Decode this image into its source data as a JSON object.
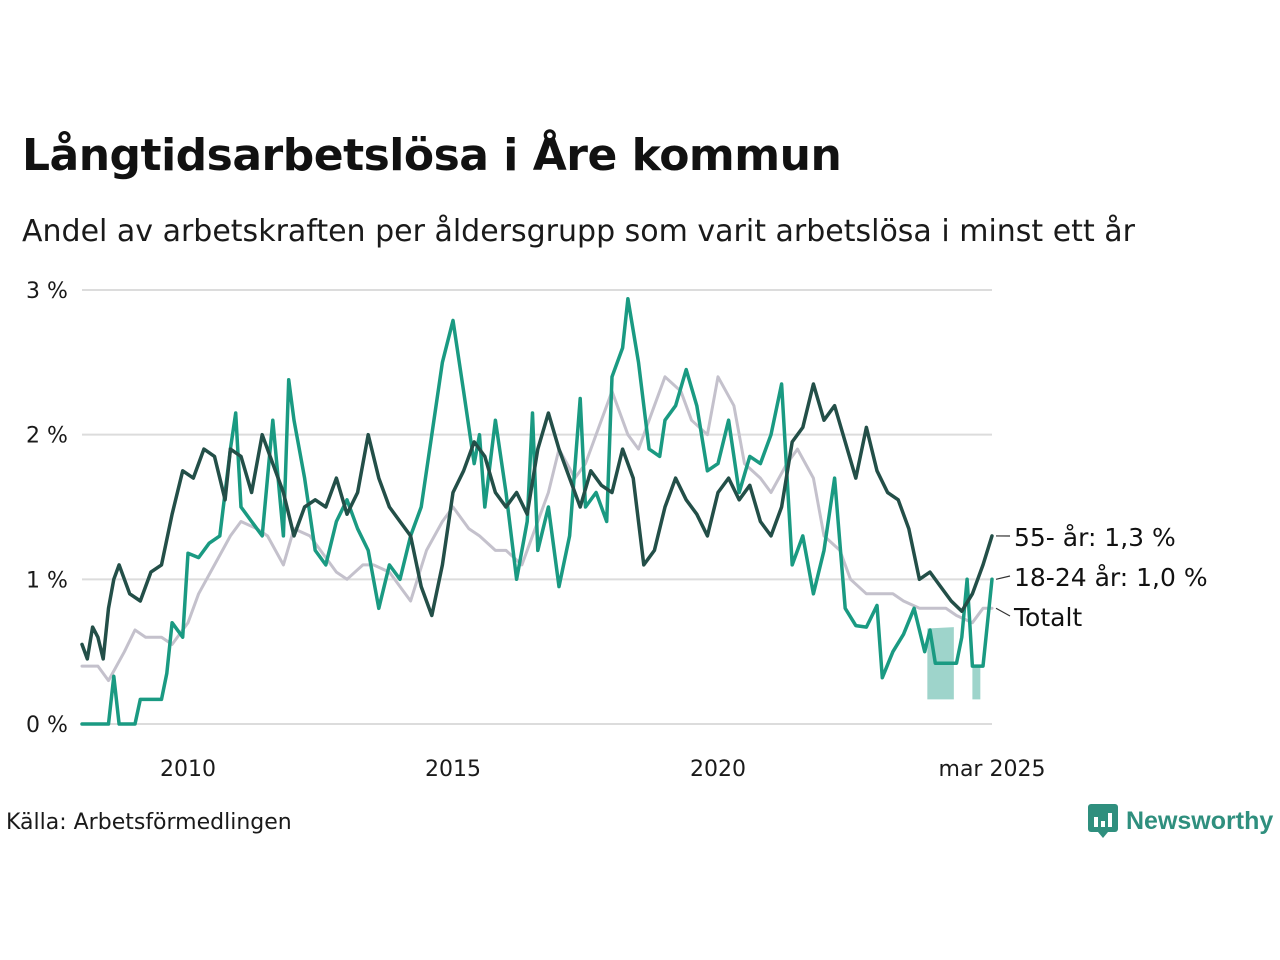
{
  "title": "Långtidsarbetslösa i Åre kommun",
  "subtitle": "Andel av arbetskraften per åldersgrupp som varit arbetslösa i minst ett år",
  "source": "Källa: Arbetsförmedlingen",
  "brand": {
    "name": "Newsworthy",
    "icon": "newsworthy-chart-icon",
    "color": "#2f8f7e"
  },
  "chart_data": {
    "type": "line",
    "y_ticks": [
      "0 %",
      "1 %",
      "2 %",
      "3 %"
    ],
    "x_ticks": [
      "2010",
      "2015",
      "2020",
      "mar 2025"
    ],
    "xlim": [
      2008.0,
      2025.17
    ],
    "ylim": [
      0,
      3
    ],
    "grid": "horizontal",
    "series": [
      {
        "name": "Totalt",
        "label": "Totalt",
        "color": "#c4c1cc",
        "points": [
          [
            2008.0,
            0.4
          ],
          [
            2008.3,
            0.4
          ],
          [
            2008.5,
            0.3
          ],
          [
            2008.8,
            0.5
          ],
          [
            2009.0,
            0.65
          ],
          [
            2009.2,
            0.6
          ],
          [
            2009.5,
            0.6
          ],
          [
            2009.7,
            0.55
          ],
          [
            2010.0,
            0.7
          ],
          [
            2010.2,
            0.9
          ],
          [
            2010.5,
            1.1
          ],
          [
            2010.8,
            1.3
          ],
          [
            2011.0,
            1.4
          ],
          [
            2011.3,
            1.35
          ],
          [
            2011.5,
            1.3
          ],
          [
            2011.8,
            1.1
          ],
          [
            2012.0,
            1.35
          ],
          [
            2012.3,
            1.3
          ],
          [
            2012.5,
            1.2
          ],
          [
            2012.8,
            1.05
          ],
          [
            2013.0,
            1.0
          ],
          [
            2013.3,
            1.1
          ],
          [
            2013.5,
            1.1
          ],
          [
            2013.8,
            1.05
          ],
          [
            2014.0,
            0.95
          ],
          [
            2014.2,
            0.85
          ],
          [
            2014.5,
            1.2
          ],
          [
            2014.8,
            1.4
          ],
          [
            2015.0,
            1.5
          ],
          [
            2015.3,
            1.35
          ],
          [
            2015.5,
            1.3
          ],
          [
            2015.8,
            1.2
          ],
          [
            2016.0,
            1.2
          ],
          [
            2016.3,
            1.1
          ],
          [
            2016.5,
            1.3
          ],
          [
            2016.8,
            1.6
          ],
          [
            2017.0,
            1.9
          ],
          [
            2017.3,
            1.7
          ],
          [
            2017.5,
            1.8
          ],
          [
            2017.8,
            2.1
          ],
          [
            2018.0,
            2.3
          ],
          [
            2018.3,
            2.0
          ],
          [
            2018.5,
            1.9
          ],
          [
            2018.8,
            2.2
          ],
          [
            2019.0,
            2.4
          ],
          [
            2019.3,
            2.3
          ],
          [
            2019.5,
            2.1
          ],
          [
            2019.8,
            2.0
          ],
          [
            2020.0,
            2.4
          ],
          [
            2020.3,
            2.2
          ],
          [
            2020.5,
            1.8
          ],
          [
            2020.8,
            1.7
          ],
          [
            2021.0,
            1.6
          ],
          [
            2021.3,
            1.8
          ],
          [
            2021.5,
            1.9
          ],
          [
            2021.8,
            1.7
          ],
          [
            2022.0,
            1.3
          ],
          [
            2022.3,
            1.2
          ],
          [
            2022.5,
            1.0
          ],
          [
            2022.8,
            0.9
          ],
          [
            2023.0,
            0.9
          ],
          [
            2023.3,
            0.9
          ],
          [
            2023.5,
            0.85
          ],
          [
            2023.8,
            0.8
          ],
          [
            2024.0,
            0.8
          ],
          [
            2024.3,
            0.8
          ],
          [
            2024.5,
            0.75
          ],
          [
            2024.8,
            0.7
          ],
          [
            2025.0,
            0.8
          ],
          [
            2025.17,
            0.8
          ]
        ]
      },
      {
        "name": "18-24 år",
        "label": "18-24 år: 1,0 %",
        "color": "#1a9a82",
        "points": [
          [
            2008.0,
            0.0
          ],
          [
            2008.5,
            0.0
          ],
          [
            2008.6,
            0.33
          ],
          [
            2008.7,
            0.0
          ],
          [
            2009.0,
            0.0
          ],
          [
            2009.1,
            0.17
          ],
          [
            2009.5,
            0.17
          ],
          [
            2009.6,
            0.35
          ],
          [
            2009.7,
            0.7
          ],
          [
            2009.9,
            0.6
          ],
          [
            2010.0,
            1.18
          ],
          [
            2010.2,
            1.15
          ],
          [
            2010.4,
            1.25
          ],
          [
            2010.6,
            1.3
          ],
          [
            2010.8,
            1.9
          ],
          [
            2010.9,
            2.15
          ],
          [
            2011.0,
            1.5
          ],
          [
            2011.2,
            1.4
          ],
          [
            2011.4,
            1.3
          ],
          [
            2011.6,
            2.1
          ],
          [
            2011.8,
            1.3
          ],
          [
            2011.9,
            2.38
          ],
          [
            2012.0,
            2.1
          ],
          [
            2012.2,
            1.7
          ],
          [
            2012.4,
            1.2
          ],
          [
            2012.6,
            1.1
          ],
          [
            2012.8,
            1.4
          ],
          [
            2013.0,
            1.55
          ],
          [
            2013.2,
            1.35
          ],
          [
            2013.4,
            1.2
          ],
          [
            2013.6,
            0.8
          ],
          [
            2013.8,
            1.1
          ],
          [
            2014.0,
            1.0
          ],
          [
            2014.2,
            1.3
          ],
          [
            2014.4,
            1.5
          ],
          [
            2014.6,
            2.0
          ],
          [
            2014.8,
            2.5
          ],
          [
            2015.0,
            2.79
          ],
          [
            2015.2,
            2.3
          ],
          [
            2015.4,
            1.8
          ],
          [
            2015.5,
            2.0
          ],
          [
            2015.6,
            1.5
          ],
          [
            2015.8,
            2.1
          ],
          [
            2016.0,
            1.6
          ],
          [
            2016.2,
            1.0
          ],
          [
            2016.4,
            1.4
          ],
          [
            2016.5,
            2.15
          ],
          [
            2016.6,
            1.2
          ],
          [
            2016.8,
            1.5
          ],
          [
            2017.0,
            0.95
          ],
          [
            2017.2,
            1.3
          ],
          [
            2017.4,
            2.25
          ],
          [
            2017.5,
            1.5
          ],
          [
            2017.7,
            1.6
          ],
          [
            2017.9,
            1.4
          ],
          [
            2018.0,
            2.4
          ],
          [
            2018.2,
            2.6
          ],
          [
            2018.3,
            2.94
          ],
          [
            2018.5,
            2.5
          ],
          [
            2018.7,
            1.9
          ],
          [
            2018.9,
            1.85
          ],
          [
            2019.0,
            2.1
          ],
          [
            2019.2,
            2.2
          ],
          [
            2019.4,
            2.45
          ],
          [
            2019.6,
            2.2
          ],
          [
            2019.8,
            1.75
          ],
          [
            2020.0,
            1.8
          ],
          [
            2020.2,
            2.1
          ],
          [
            2020.4,
            1.6
          ],
          [
            2020.6,
            1.85
          ],
          [
            2020.8,
            1.8
          ],
          [
            2021.0,
            2.0
          ],
          [
            2021.2,
            2.35
          ],
          [
            2021.4,
            1.1
          ],
          [
            2021.6,
            1.3
          ],
          [
            2021.8,
            0.9
          ],
          [
            2022.0,
            1.2
          ],
          [
            2022.2,
            1.7
          ],
          [
            2022.4,
            0.8
          ],
          [
            2022.6,
            0.68
          ],
          [
            2022.8,
            0.67
          ],
          [
            2023.0,
            0.82
          ],
          [
            2023.1,
            0.32
          ],
          [
            2023.3,
            0.5
          ],
          [
            2023.5,
            0.62
          ],
          [
            2023.7,
            0.8
          ],
          [
            2023.9,
            0.5
          ],
          [
            2024.0,
            0.65
          ],
          [
            2024.1,
            0.42
          ],
          [
            2024.5,
            0.42
          ],
          [
            2024.6,
            0.6
          ],
          [
            2024.7,
            1.0
          ],
          [
            2024.8,
            0.4
          ],
          [
            2025.0,
            0.4
          ],
          [
            2025.17,
            1.0
          ]
        ]
      },
      {
        "name": "55- år",
        "label": "55- år: 1,3 %",
        "color": "#234f48",
        "points": [
          [
            2008.0,
            0.55
          ],
          [
            2008.1,
            0.45
          ],
          [
            2008.2,
            0.67
          ],
          [
            2008.3,
            0.6
          ],
          [
            2008.4,
            0.45
          ],
          [
            2008.5,
            0.8
          ],
          [
            2008.6,
            1.0
          ],
          [
            2008.7,
            1.1
          ],
          [
            2008.9,
            0.9
          ],
          [
            2009.1,
            0.85
          ],
          [
            2009.3,
            1.05
          ],
          [
            2009.5,
            1.1
          ],
          [
            2009.7,
            1.45
          ],
          [
            2009.9,
            1.75
          ],
          [
            2010.1,
            1.7
          ],
          [
            2010.3,
            1.9
          ],
          [
            2010.5,
            1.85
          ],
          [
            2010.7,
            1.55
          ],
          [
            2010.8,
            1.9
          ],
          [
            2011.0,
            1.85
          ],
          [
            2011.2,
            1.6
          ],
          [
            2011.4,
            2.0
          ],
          [
            2011.6,
            1.8
          ],
          [
            2011.8,
            1.6
          ],
          [
            2012.0,
            1.3
          ],
          [
            2012.2,
            1.5
          ],
          [
            2012.4,
            1.55
          ],
          [
            2012.6,
            1.5
          ],
          [
            2012.8,
            1.7
          ],
          [
            2013.0,
            1.45
          ],
          [
            2013.2,
            1.6
          ],
          [
            2013.4,
            2.0
          ],
          [
            2013.6,
            1.7
          ],
          [
            2013.8,
            1.5
          ],
          [
            2014.0,
            1.4
          ],
          [
            2014.2,
            1.3
          ],
          [
            2014.4,
            0.95
          ],
          [
            2014.6,
            0.75
          ],
          [
            2014.8,
            1.1
          ],
          [
            2015.0,
            1.6
          ],
          [
            2015.2,
            1.75
          ],
          [
            2015.4,
            1.95
          ],
          [
            2015.6,
            1.85
          ],
          [
            2015.8,
            1.6
          ],
          [
            2016.0,
            1.5
          ],
          [
            2016.2,
            1.6
          ],
          [
            2016.4,
            1.45
          ],
          [
            2016.6,
            1.9
          ],
          [
            2016.8,
            2.15
          ],
          [
            2017.0,
            1.9
          ],
          [
            2017.2,
            1.7
          ],
          [
            2017.4,
            1.5
          ],
          [
            2017.6,
            1.75
          ],
          [
            2017.8,
            1.65
          ],
          [
            2018.0,
            1.6
          ],
          [
            2018.2,
            1.9
          ],
          [
            2018.4,
            1.7
          ],
          [
            2018.6,
            1.1
          ],
          [
            2018.8,
            1.2
          ],
          [
            2019.0,
            1.5
          ],
          [
            2019.2,
            1.7
          ],
          [
            2019.4,
            1.55
          ],
          [
            2019.6,
            1.45
          ],
          [
            2019.8,
            1.3
          ],
          [
            2020.0,
            1.6
          ],
          [
            2020.2,
            1.7
          ],
          [
            2020.4,
            1.55
          ],
          [
            2020.6,
            1.65
          ],
          [
            2020.8,
            1.4
          ],
          [
            2021.0,
            1.3
          ],
          [
            2021.2,
            1.5
          ],
          [
            2021.4,
            1.95
          ],
          [
            2021.6,
            2.05
          ],
          [
            2021.8,
            2.35
          ],
          [
            2022.0,
            2.1
          ],
          [
            2022.2,
            2.2
          ],
          [
            2022.4,
            1.95
          ],
          [
            2022.6,
            1.7
          ],
          [
            2022.8,
            2.05
          ],
          [
            2023.0,
            1.75
          ],
          [
            2023.2,
            1.6
          ],
          [
            2023.4,
            1.55
          ],
          [
            2023.6,
            1.35
          ],
          [
            2023.8,
            1.0
          ],
          [
            2024.0,
            1.05
          ],
          [
            2024.2,
            0.95
          ],
          [
            2024.4,
            0.85
          ],
          [
            2024.6,
            0.78
          ],
          [
            2024.8,
            0.9
          ],
          [
            2025.0,
            1.1
          ],
          [
            2025.17,
            1.3
          ]
        ]
      }
    ],
    "uncertainty_band": {
      "series": "18-24 år",
      "color": "#9ed4cb",
      "segments": [
        [
          [
            2023.95,
            0.17,
            0.66
          ],
          [
            2024.45,
            0.17,
            0.67
          ]
        ],
        [
          [
            2024.8,
            0.17,
            0.4
          ],
          [
            2024.95,
            0.17,
            0.4
          ]
        ]
      ]
    }
  }
}
